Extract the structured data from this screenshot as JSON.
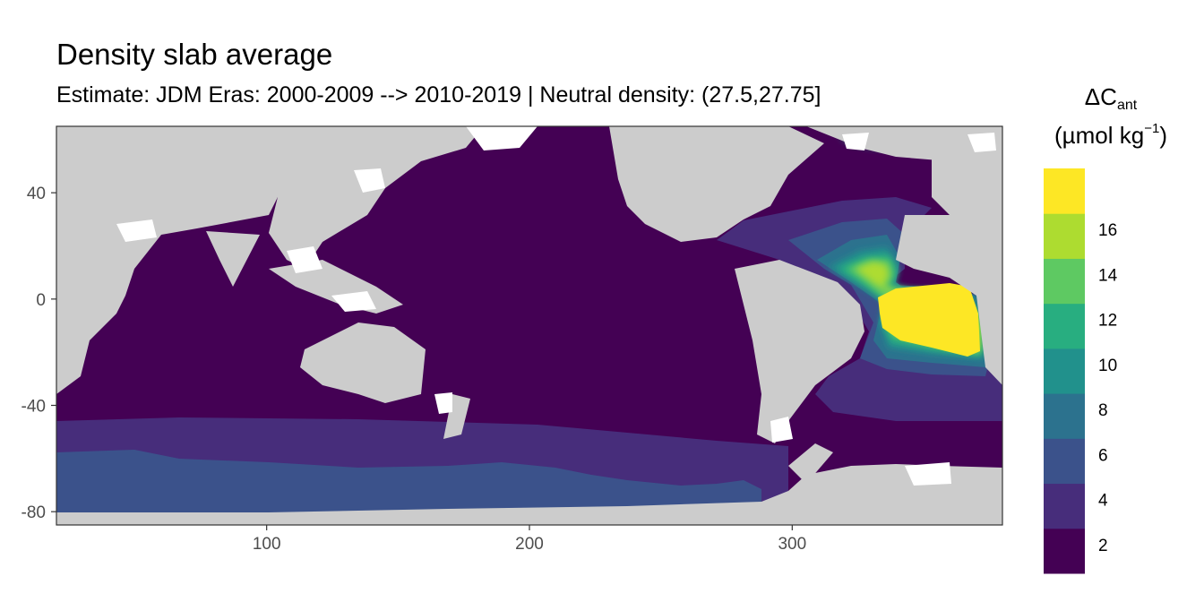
{
  "chart_data": {
    "type": "heatmap",
    "title": "Density slab average",
    "subtitle": "Estimate: JDM Eras: 2000-2009 --> 2010-2019 | Neutral density: (27.5,27.75]",
    "legend": {
      "symbol": "ΔC",
      "subscript": "ant",
      "unit_prefix": "(µmol kg",
      "unit_exponent": "−1",
      "unit_suffix": ")",
      "placement": "right",
      "breaks": [
        2,
        4,
        6,
        8,
        10,
        12,
        14,
        16
      ],
      "colors": [
        "#440154",
        "#472d7b",
        "#3b528b",
        "#2c728e",
        "#21918c",
        "#28ae80",
        "#5ec962",
        "#addc30",
        "#fde725"
      ]
    },
    "x_ticks": [
      100,
      200,
      300
    ],
    "y_ticks": [
      40,
      0,
      -40,
      -80
    ],
    "xlim": [
      20,
      380
    ],
    "ylim": [
      -85,
      65
    ],
    "colors": {
      "land": "#cccccc",
      "missing": "#ffffff",
      "frame": "#333333"
    }
  }
}
